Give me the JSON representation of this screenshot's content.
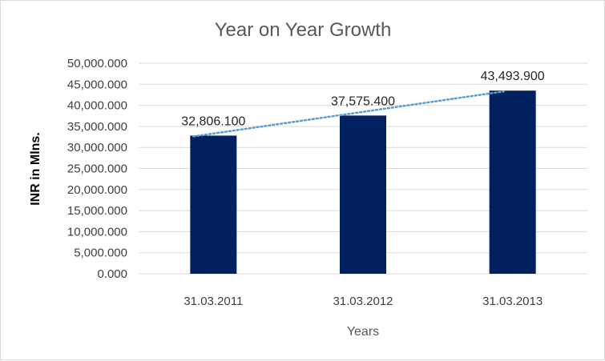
{
  "chart_data": {
    "type": "bar",
    "title": "Year on Year Growth",
    "xlabel": "Years",
    "ylabel": "INR in Mlns.",
    "categories": [
      "31.03.2011",
      "31.03.2012",
      "31.03.2013"
    ],
    "values": [
      32806.1,
      37575.4,
      43493.9
    ],
    "data_labels": [
      "32,806.100",
      "37,575.400",
      "43,493.900"
    ],
    "ylim": [
      0,
      50000
    ],
    "y_ticks": [
      0,
      5000,
      10000,
      15000,
      20000,
      25000,
      30000,
      35000,
      40000,
      45000,
      50000
    ],
    "y_tick_labels": [
      "0.000",
      "5,000.000",
      "10,000.000",
      "15,000.000",
      "20,000.000",
      "25,000.000",
      "30,000.000",
      "35,000.000",
      "40,000.000",
      "45,000.000",
      "50,000.000"
    ],
    "grid": true,
    "legend": "none",
    "bar_color": "#002060",
    "trendline": {
      "type": "linear",
      "style": "dotted",
      "color": "#5b9bd5"
    }
  }
}
